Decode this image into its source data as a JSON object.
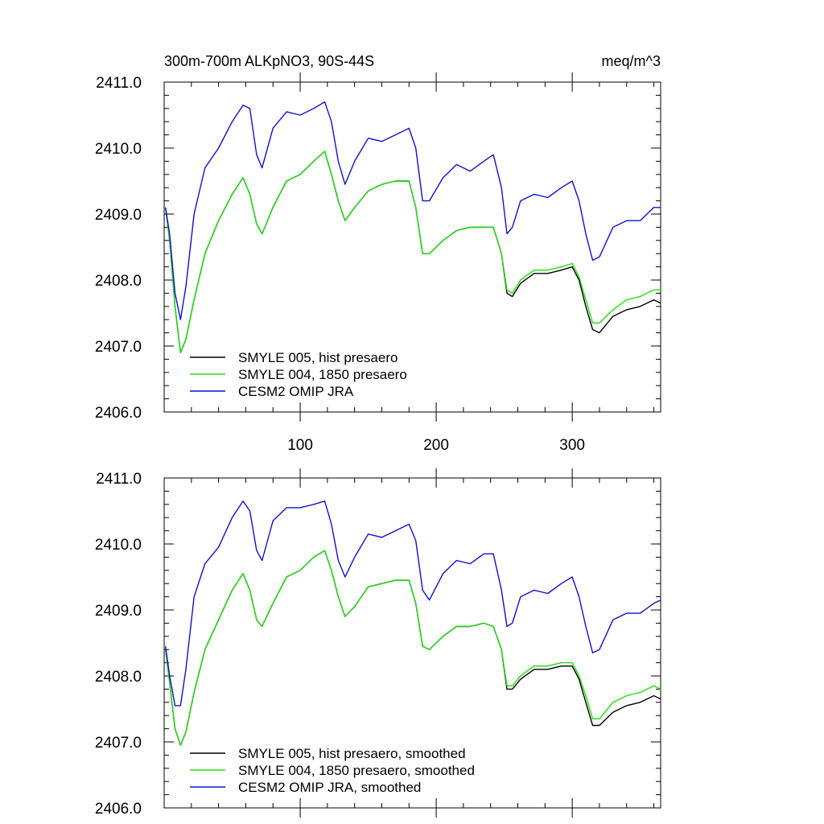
{
  "figure": {
    "title_left": "300m-700m ALKpNO3, 90S-44S",
    "title_right": "meq/m^3"
  },
  "chart_data": [
    {
      "type": "line",
      "title": "300m-700m ALKpNO3, 90S-44S",
      "units": "meq/m^3",
      "xlim": [
        0,
        365
      ],
      "ylim": [
        2406.0,
        2411.0
      ],
      "x_ticks": [
        100,
        200,
        300
      ],
      "x_tick_labels": [
        "100",
        "200",
        "300"
      ],
      "y_ticks": [
        2406.0,
        2407.0,
        2408.0,
        2409.0,
        2410.0,
        2411.0
      ],
      "y_tick_labels": [
        "2406.0",
        "2407.0",
        "2408.0",
        "2409.0",
        "2410.0",
        "2411.0"
      ],
      "legend_position": "bottom-left",
      "series": [
        {
          "name": "SMYLE 005, hist presaero",
          "color": "#000000",
          "x": [
            1,
            4,
            8,
            12,
            16,
            22,
            30,
            40,
            50,
            58,
            63,
            68,
            72,
            80,
            90,
            100,
            110,
            118,
            123,
            128,
            133,
            140,
            150,
            160,
            170,
            180,
            185,
            190,
            195,
            205,
            215,
            225,
            235,
            242,
            248,
            252,
            256,
            262,
            272,
            282,
            292,
            300,
            305,
            310,
            315,
            320,
            330,
            340,
            350,
            360,
            365
          ],
          "y": [
            2409.1,
            2408.6,
            2407.6,
            2406.9,
            2407.1,
            2407.7,
            2408.4,
            2408.9,
            2409.3,
            2409.55,
            2409.3,
            2408.85,
            2408.7,
            2409.1,
            2409.5,
            2409.6,
            2409.8,
            2409.95,
            2409.6,
            2409.2,
            2408.9,
            2409.1,
            2409.35,
            2409.45,
            2409.5,
            2409.5,
            2409.1,
            2408.4,
            2408.4,
            2408.6,
            2408.75,
            2408.8,
            2408.8,
            2408.8,
            2408.4,
            2407.8,
            2407.75,
            2407.95,
            2408.1,
            2408.1,
            2408.15,
            2408.2,
            2408.0,
            2407.6,
            2407.25,
            2407.2,
            2407.45,
            2407.55,
            2407.6,
            2407.7,
            2407.65
          ]
        },
        {
          "name": "SMYLE 004, 1850 presaero",
          "color": "#22dd11",
          "x": [
            1,
            4,
            8,
            12,
            16,
            22,
            30,
            40,
            50,
            58,
            63,
            68,
            72,
            80,
            90,
            100,
            110,
            118,
            123,
            128,
            133,
            140,
            150,
            160,
            170,
            180,
            185,
            190,
            195,
            205,
            215,
            225,
            235,
            242,
            248,
            252,
            256,
            262,
            272,
            282,
            292,
            300,
            305,
            310,
            315,
            320,
            330,
            340,
            350,
            360,
            365
          ],
          "y": [
            2409.1,
            2408.6,
            2407.6,
            2406.9,
            2407.1,
            2407.7,
            2408.4,
            2408.9,
            2409.3,
            2409.55,
            2409.3,
            2408.85,
            2408.7,
            2409.1,
            2409.5,
            2409.6,
            2409.8,
            2409.95,
            2409.6,
            2409.2,
            2408.9,
            2409.1,
            2409.35,
            2409.45,
            2409.5,
            2409.5,
            2409.1,
            2408.4,
            2408.4,
            2408.6,
            2408.75,
            2408.8,
            2408.8,
            2408.8,
            2408.4,
            2407.85,
            2407.8,
            2408.0,
            2408.15,
            2408.15,
            2408.2,
            2408.25,
            2408.05,
            2407.7,
            2407.35,
            2407.35,
            2407.55,
            2407.7,
            2407.75,
            2407.85,
            2407.85
          ]
        },
        {
          "name": "CESM2 OMIP JRA",
          "color": "#1111cc",
          "x": [
            1,
            4,
            8,
            12,
            16,
            22,
            30,
            40,
            50,
            58,
            63,
            68,
            72,
            80,
            90,
            100,
            110,
            118,
            123,
            128,
            133,
            140,
            150,
            160,
            170,
            180,
            185,
            190,
            195,
            205,
            215,
            225,
            235,
            242,
            248,
            252,
            256,
            262,
            272,
            282,
            292,
            300,
            305,
            310,
            315,
            320,
            330,
            340,
            350,
            360,
            365
          ],
          "y": [
            2409.1,
            2408.7,
            2407.8,
            2407.4,
            2407.9,
            2409.0,
            2409.7,
            2410.0,
            2410.4,
            2410.65,
            2410.6,
            2409.9,
            2409.7,
            2410.3,
            2410.55,
            2410.5,
            2410.6,
            2410.7,
            2410.4,
            2409.8,
            2409.45,
            2409.8,
            2410.15,
            2410.1,
            2410.2,
            2410.3,
            2410.0,
            2409.2,
            2409.2,
            2409.55,
            2409.75,
            2409.65,
            2409.8,
            2409.9,
            2409.4,
            2408.7,
            2408.8,
            2409.2,
            2409.3,
            2409.25,
            2409.4,
            2409.5,
            2409.2,
            2408.7,
            2408.3,
            2408.35,
            2408.8,
            2408.9,
            2408.9,
            2409.1,
            2409.1
          ]
        }
      ]
    },
    {
      "type": "line",
      "xlim": [
        0,
        365
      ],
      "ylim": [
        2406.0,
        2411.0
      ],
      "y_ticks": [
        2406.0,
        2407.0,
        2408.0,
        2409.0,
        2410.0,
        2411.0
      ],
      "y_tick_labels": [
        "2406.0",
        "2407.0",
        "2408.0",
        "2409.0",
        "2410.0",
        "2411.0"
      ],
      "legend_position": "bottom-left",
      "series": [
        {
          "name": "SMYLE 005, hist presaero, smoothed",
          "color": "#000000",
          "x": [
            1,
            4,
            8,
            12,
            16,
            22,
            30,
            40,
            50,
            58,
            63,
            68,
            72,
            80,
            90,
            100,
            110,
            118,
            123,
            128,
            133,
            140,
            150,
            160,
            170,
            180,
            185,
            190,
            195,
            205,
            215,
            225,
            235,
            242,
            248,
            252,
            256,
            262,
            272,
            282,
            292,
            300,
            305,
            310,
            315,
            320,
            330,
            340,
            350,
            360,
            365
          ],
          "y": [
            2408.4,
            2407.9,
            2407.2,
            2406.95,
            2407.15,
            2407.75,
            2408.4,
            2408.85,
            2409.3,
            2409.55,
            2409.3,
            2408.85,
            2408.75,
            2409.1,
            2409.5,
            2409.6,
            2409.8,
            2409.9,
            2409.6,
            2409.2,
            2408.9,
            2409.05,
            2409.35,
            2409.4,
            2409.45,
            2409.45,
            2409.1,
            2408.45,
            2408.4,
            2408.6,
            2408.75,
            2408.75,
            2408.8,
            2408.75,
            2408.4,
            2407.8,
            2407.8,
            2407.95,
            2408.1,
            2408.1,
            2408.15,
            2408.15,
            2407.95,
            2407.6,
            2407.25,
            2407.25,
            2407.45,
            2407.55,
            2407.6,
            2407.7,
            2407.65
          ]
        },
        {
          "name": "SMYLE 004, 1850 presaero, smoothed",
          "color": "#22dd11",
          "x": [
            1,
            4,
            8,
            12,
            16,
            22,
            30,
            40,
            50,
            58,
            63,
            68,
            72,
            80,
            90,
            100,
            110,
            118,
            123,
            128,
            133,
            140,
            150,
            160,
            170,
            180,
            185,
            190,
            195,
            205,
            215,
            225,
            235,
            242,
            248,
            252,
            256,
            262,
            272,
            282,
            292,
            300,
            305,
            310,
            315,
            320,
            330,
            340,
            350,
            360,
            365
          ],
          "y": [
            2408.4,
            2407.9,
            2407.2,
            2406.95,
            2407.15,
            2407.75,
            2408.4,
            2408.85,
            2409.3,
            2409.55,
            2409.3,
            2408.85,
            2408.75,
            2409.1,
            2409.5,
            2409.6,
            2409.8,
            2409.9,
            2409.6,
            2409.2,
            2408.9,
            2409.05,
            2409.35,
            2409.4,
            2409.45,
            2409.45,
            2409.1,
            2408.45,
            2408.4,
            2408.6,
            2408.75,
            2408.75,
            2408.8,
            2408.75,
            2408.4,
            2407.85,
            2407.85,
            2408.0,
            2408.15,
            2408.15,
            2408.2,
            2408.2,
            2408.0,
            2407.7,
            2407.35,
            2407.35,
            2407.6,
            2407.7,
            2407.75,
            2407.85,
            2407.8
          ]
        },
        {
          "name": "CESM2 OMIP JRA, smoothed",
          "color": "#1111cc",
          "x": [
            1,
            4,
            8,
            12,
            16,
            22,
            30,
            40,
            50,
            58,
            63,
            68,
            72,
            80,
            90,
            100,
            110,
            118,
            123,
            128,
            133,
            140,
            150,
            160,
            170,
            180,
            185,
            190,
            195,
            205,
            215,
            225,
            235,
            242,
            248,
            252,
            256,
            262,
            272,
            282,
            292,
            300,
            305,
            310,
            315,
            320,
            330,
            340,
            350,
            360,
            365
          ],
          "y": [
            2408.45,
            2408.0,
            2407.55,
            2407.55,
            2408.1,
            2409.2,
            2409.7,
            2409.95,
            2410.4,
            2410.65,
            2410.5,
            2409.9,
            2409.75,
            2410.35,
            2410.55,
            2410.55,
            2410.6,
            2410.65,
            2410.3,
            2409.75,
            2409.5,
            2409.8,
            2410.15,
            2410.1,
            2410.2,
            2410.3,
            2410.05,
            2409.3,
            2409.15,
            2409.55,
            2409.75,
            2409.7,
            2409.85,
            2409.85,
            2409.3,
            2408.75,
            2408.8,
            2409.2,
            2409.3,
            2409.25,
            2409.4,
            2409.5,
            2409.2,
            2408.75,
            2408.35,
            2408.4,
            2408.85,
            2408.95,
            2408.95,
            2409.1,
            2409.15
          ]
        }
      ]
    }
  ]
}
